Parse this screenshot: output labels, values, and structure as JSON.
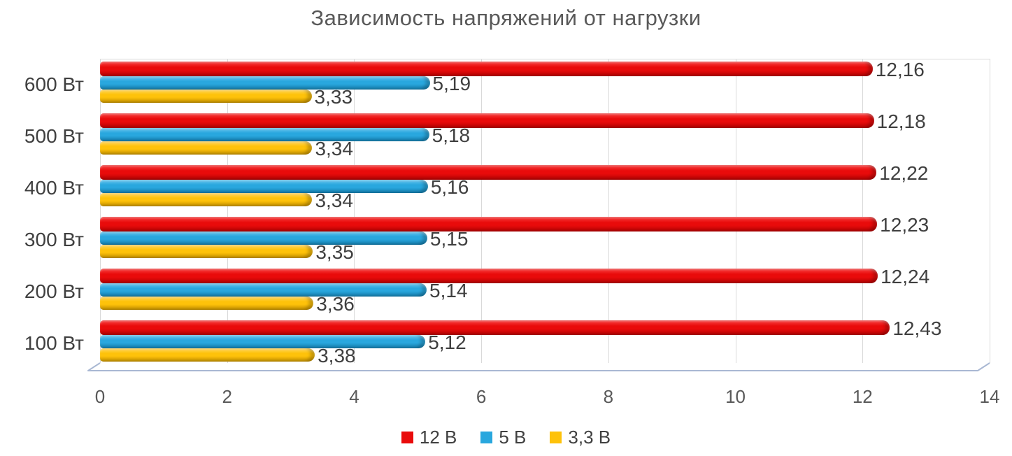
{
  "chart_data": {
    "type": "bar",
    "orientation": "horizontal",
    "title": "Зависимость напряжений от нагрузки",
    "categories": [
      "600 Вт",
      "500 Вт",
      "400 Вт",
      "300 Вт",
      "200 Вт",
      "100 Вт"
    ],
    "series": [
      {
        "name": "12 В",
        "color": "#e90b0b",
        "color_light": "#fa4444",
        "color_dark": "#b40303",
        "values": [
          12.16,
          12.18,
          12.22,
          12.23,
          12.24,
          12.43
        ],
        "labels": [
          "12,16",
          "12,18",
          "12,22",
          "12,23",
          "12,24",
          "12,43"
        ]
      },
      {
        "name": "5 В",
        "color": "#29a7de",
        "color_light": "#6cc6ee",
        "color_dark": "#147dad",
        "values": [
          5.19,
          5.18,
          5.16,
          5.15,
          5.14,
          5.12
        ],
        "labels": [
          "5,19",
          "5,18",
          "5,16",
          "5,15",
          "5,14",
          "5,12"
        ]
      },
      {
        "name": "3,3 В",
        "color": "#fec20a",
        "color_light": "#ffd65e",
        "color_dark": "#c69200",
        "values": [
          3.33,
          3.34,
          3.34,
          3.35,
          3.36,
          3.38
        ],
        "labels": [
          "3,33",
          "3,34",
          "3,34",
          "3,35",
          "3,36",
          "3,38"
        ]
      }
    ],
    "x_axis": {
      "min": 0,
      "max": 14,
      "tick_step": 2,
      "tick_labels": [
        "0",
        "2",
        "4",
        "6",
        "8",
        "10",
        "12",
        "14"
      ]
    },
    "legend": {
      "position": "bottom",
      "entries": [
        "12 В",
        "5 В",
        "3,3 В"
      ]
    },
    "grid": true,
    "colors": {
      "grid": "#d9d9d9",
      "axis_line": "#a9b8d3",
      "title_text": "#595959",
      "tick_text": "#595959",
      "value_label_text": "#3f3f3f"
    }
  }
}
